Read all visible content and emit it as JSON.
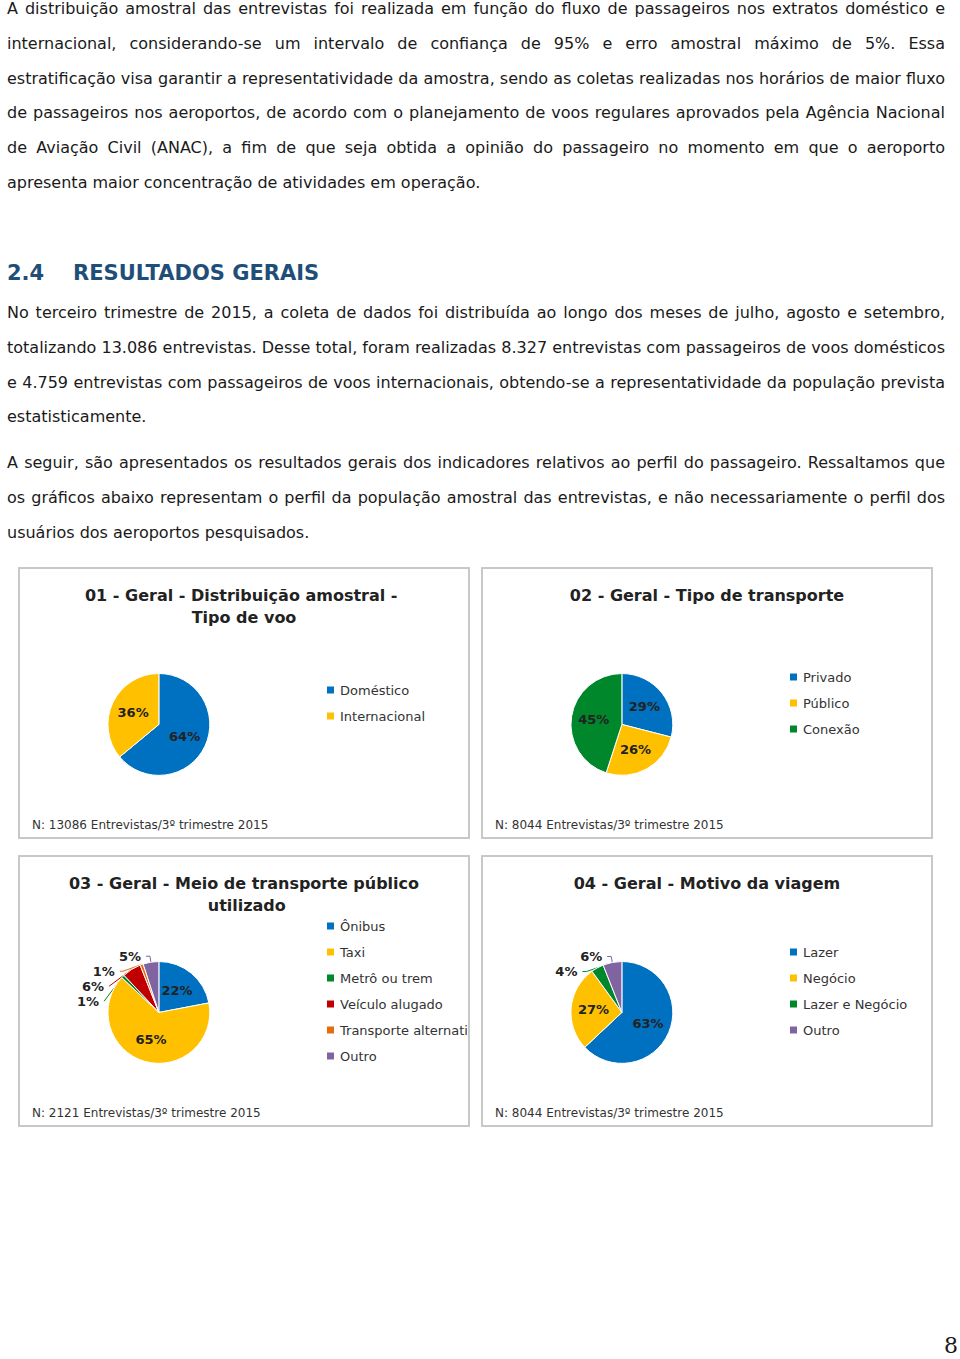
{
  "paragraph_1": "A distribuição amostral das entrevistas foi realizada em função do fluxo de passageiros nos extratos doméstico e internacional, considerando-se um intervalo de confiança de 95% e erro amostral máximo de 5%. Essa estratificação visa garantir a representatividade da amostra, sendo as coletas realizadas nos horários de maior fluxo de passageiros nos aeroportos, de acordo com o planejamento de voos regulares aprovados pela Agência Nacional de Aviação Civil (ANAC), a fim de que seja obtida a opinião do passageiro no momento em que o aeroporto apresenta maior concentração de atividades em operação.",
  "heading": {
    "number": "2.4",
    "title": "RESULTADOS GERAIS"
  },
  "paragraph_2": "No terceiro trimestre de 2015, a coleta de dados foi distribuída ao longo dos meses de julho, agosto e setembro, totalizando 13.086 entrevistas. Desse total, foram realizadas 8.327 entrevistas com passageiros de voos domésticos e 4.759 entrevistas com passageiros de voos internacionais, obtendo-se a representatividade da população prevista estatisticamente.",
  "paragraph_3": "A seguir, são apresentados os resultados gerais dos indicadores relativos ao perfil do passageiro. Ressaltamos que os gráficos abaixo representam o perfil da população amostral das entrevistas, e não necessariamente o perfil dos usuários dos aeroportos pesquisados.",
  "page_number": "8",
  "chart_data": [
    {
      "type": "pie",
      "title": "01 - Geral - Distribuição amostral - Tipo de voo",
      "categories": [
        "Doméstico",
        "Internacional"
      ],
      "values": [
        64,
        36
      ],
      "value_labels": [
        "64%",
        "36%"
      ],
      "colors": [
        "#0070c0",
        "#ffc000"
      ],
      "data_labels": true,
      "legend": "right",
      "annotations": [
        "N: 13086 Entrevistas/3º trimestre 2015"
      ]
    },
    {
      "type": "pie",
      "title": "02 - Geral - Tipo de transporte",
      "categories": [
        "Privado",
        "Público",
        "Conexão"
      ],
      "values": [
        29,
        26,
        45
      ],
      "value_labels": [
        "29%",
        "26%",
        "45%"
      ],
      "colors": [
        "#0070c0",
        "#ffc000",
        "#00862b"
      ],
      "data_labels": true,
      "legend": "right",
      "annotations": [
        "N: 8044 Entrevistas/3º trimestre 2015"
      ]
    },
    {
      "type": "pie",
      "title": "03 - Geral - Meio de transporte público utilizado",
      "categories": [
        "Ônibus",
        "Taxi",
        "Metrô ou trem",
        "Veículo alugado",
        "Transporte alternativo",
        "Outro"
      ],
      "values": [
        22,
        65,
        1,
        6,
        1,
        5
      ],
      "value_labels": [
        "22%",
        "65%",
        "1%",
        "6%",
        "1%",
        "5%"
      ],
      "colors": [
        "#0070c0",
        "#ffc000",
        "#00862b",
        "#c00000",
        "#e46c0a",
        "#8064a2"
      ],
      "data_labels": true,
      "legend": "right",
      "annotations": [
        "N: 2121 Entrevistas/3º trimestre 2015"
      ]
    },
    {
      "type": "pie",
      "title": "04 - Geral - Motivo da viagem",
      "categories": [
        "Lazer",
        "Negócio",
        "Lazer e Negócio",
        "Outro"
      ],
      "values": [
        63,
        27,
        4,
        6
      ],
      "value_labels": [
        "63%",
        "27%",
        "4%",
        "6%"
      ],
      "colors": [
        "#0070c0",
        "#ffc000",
        "#00862b",
        "#8064a2"
      ],
      "data_labels": true,
      "legend": "right",
      "annotations": [
        "N: 8044 Entrevistas/3º trimestre 2015"
      ]
    }
  ]
}
